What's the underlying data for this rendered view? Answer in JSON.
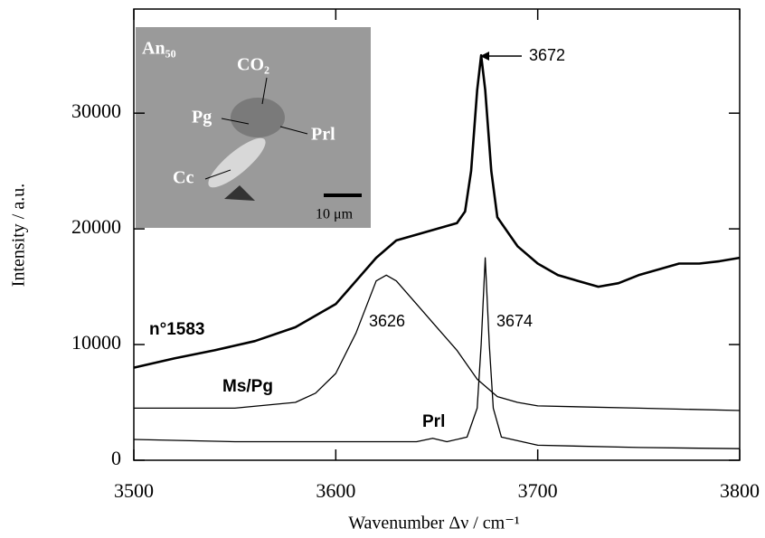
{
  "chart_data": {
    "type": "line",
    "xlabel": "Wavenumber Δν / cm⁻¹",
    "ylabel": "Intensity / a.u.",
    "xlim": [
      3500,
      3800
    ],
    "ylim": [
      0,
      39000
    ],
    "xticks": [
      3500,
      3600,
      3700,
      3800
    ],
    "yticks": [
      0,
      10000,
      20000,
      30000
    ],
    "grid": false,
    "series": [
      {
        "name": "n°1583",
        "color": "#000000",
        "line_width": 2.6,
        "x": [
          3500,
          3520,
          3540,
          3560,
          3580,
          3600,
          3610,
          3620,
          3630,
          3640,
          3650,
          3660,
          3664,
          3667,
          3670,
          3672,
          3674,
          3677,
          3680,
          3690,
          3700,
          3710,
          3720,
          3730,
          3740,
          3750,
          3760,
          3770,
          3780,
          3790,
          3800
        ],
        "values": [
          8000,
          8800,
          9500,
          10300,
          11500,
          13500,
          15500,
          17500,
          19000,
          19500,
          20000,
          20500,
          21500,
          25000,
          32000,
          35000,
          32000,
          25000,
          21000,
          18500,
          17000,
          16000,
          15500,
          15000,
          15300,
          16000,
          16500,
          17000,
          17000,
          17200,
          17500
        ]
      },
      {
        "name": "Ms/Pg",
        "color": "#000000",
        "line_width": 1.3,
        "x": [
          3500,
          3550,
          3580,
          3590,
          3600,
          3610,
          3620,
          3625,
          3630,
          3640,
          3650,
          3660,
          3670,
          3680,
          3690,
          3700,
          3750,
          3800
        ],
        "values": [
          4500,
          4500,
          5000,
          5800,
          7500,
          11000,
          15500,
          16000,
          15500,
          13500,
          11500,
          9500,
          7000,
          5500,
          5000,
          4700,
          4500,
          4300
        ]
      },
      {
        "name": "Prl",
        "color": "#000000",
        "line_width": 1.3,
        "x": [
          3500,
          3550,
          3600,
          3640,
          3648,
          3655,
          3665,
          3670,
          3672,
          3674,
          3676,
          3678,
          3682,
          3700,
          3750,
          3800
        ],
        "values": [
          1800,
          1600,
          1600,
          1600,
          1900,
          1600,
          2000,
          4500,
          10000,
          17500,
          10000,
          4500,
          2000,
          1300,
          1100,
          1000
        ]
      }
    ],
    "annotations": [
      "3672",
      "3626",
      "3674"
    ],
    "inset": {
      "labels": [
        "An₅₀",
        "CO₂",
        "Pg",
        "Prl",
        "Cc",
        "10 μm"
      ]
    }
  }
}
